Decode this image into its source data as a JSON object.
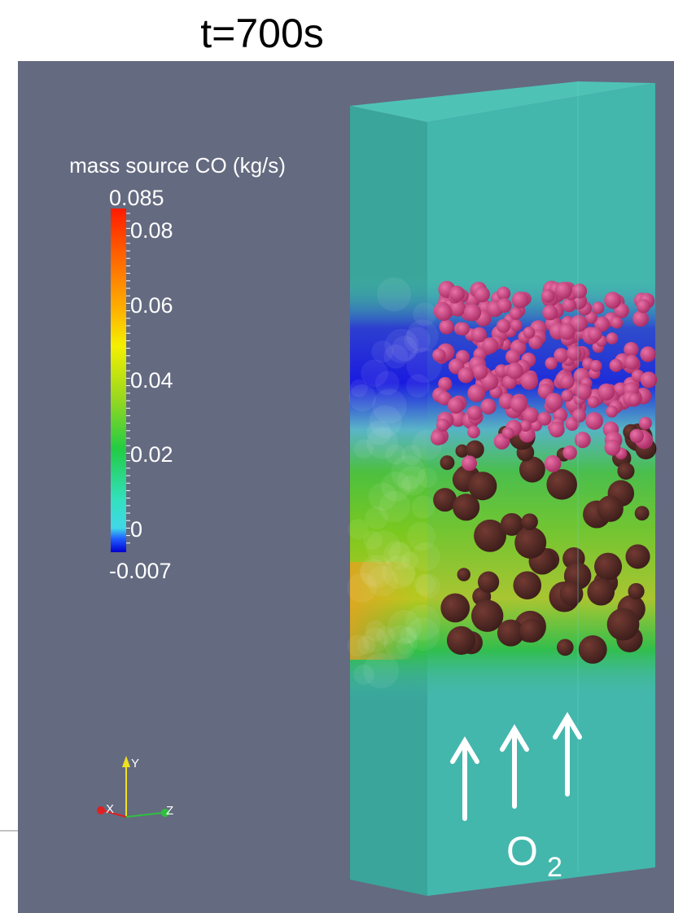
{
  "title": "t=700s",
  "colorbar": {
    "title": "mass source CO (kg/s)",
    "labels": [
      "0.085",
      "0.08",
      "0.06",
      "0.04",
      "0.02",
      "0",
      "-0.007"
    ]
  },
  "axes": {
    "y": "Y",
    "x": "X",
    "z": "Z"
  },
  "flow_label": {
    "symbol": "O",
    "subscript": "2"
  }
}
